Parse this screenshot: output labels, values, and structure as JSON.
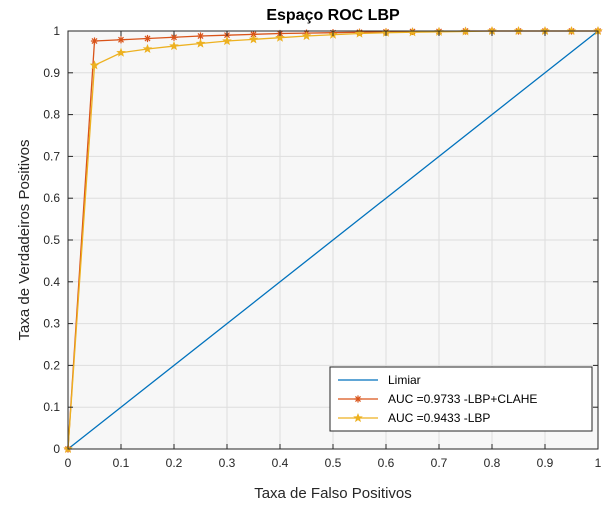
{
  "chart_data": {
    "type": "line",
    "title": "Espaço ROC LBP",
    "xlabel": "Taxa de Falso Positivos",
    "ylabel": "Taxa de Verdadeiros Positivos",
    "xlim": [
      0,
      1
    ],
    "ylim": [
      0,
      1
    ],
    "xticks": [
      "0",
      "0.1",
      "0.2",
      "0.3",
      "0.4",
      "0.5",
      "0.6",
      "0.7",
      "0.8",
      "0.9",
      "1"
    ],
    "yticks": [
      "0",
      "0.1",
      "0.2",
      "0.3",
      "0.4",
      "0.5",
      "0.6",
      "0.7",
      "0.8",
      "0.9",
      "1"
    ],
    "grid": true,
    "legend_position": "bottom-right",
    "series": [
      {
        "name": "Limiar",
        "color": "#0072BD",
        "marker": "none",
        "x": [
          0,
          1
        ],
        "y": [
          0,
          1
        ]
      },
      {
        "name": "AUC =0.9733 -LBP+CLAHE",
        "color": "#D95319",
        "marker": "asterisk",
        "x": [
          0,
          0.05,
          0.1,
          0.15,
          0.2,
          0.25,
          0.3,
          0.35,
          0.4,
          0.45,
          0.5,
          0.55,
          0.6,
          0.65,
          0.7,
          0.75,
          0.8,
          0.85,
          0.9,
          0.95,
          1
        ],
        "y": [
          0,
          0.976,
          0.979,
          0.982,
          0.985,
          0.988,
          0.99,
          0.992,
          0.994,
          0.995,
          0.996,
          0.997,
          0.998,
          0.999,
          0.999,
          1,
          1,
          1,
          1,
          1,
          1
        ]
      },
      {
        "name": "AUC =0.9433 -LBP",
        "color": "#EDB120",
        "marker": "pentagram",
        "x": [
          0,
          0.05,
          0.1,
          0.15,
          0.2,
          0.25,
          0.3,
          0.35,
          0.4,
          0.45,
          0.5,
          0.55,
          0.6,
          0.65,
          0.7,
          0.75,
          0.8,
          0.85,
          0.9,
          0.95,
          1
        ],
        "y": [
          0,
          0.918,
          0.948,
          0.957,
          0.964,
          0.97,
          0.976,
          0.98,
          0.984,
          0.988,
          0.991,
          0.994,
          0.996,
          0.997,
          0.998,
          0.999,
          1,
          1,
          1,
          1,
          1
        ]
      }
    ]
  }
}
